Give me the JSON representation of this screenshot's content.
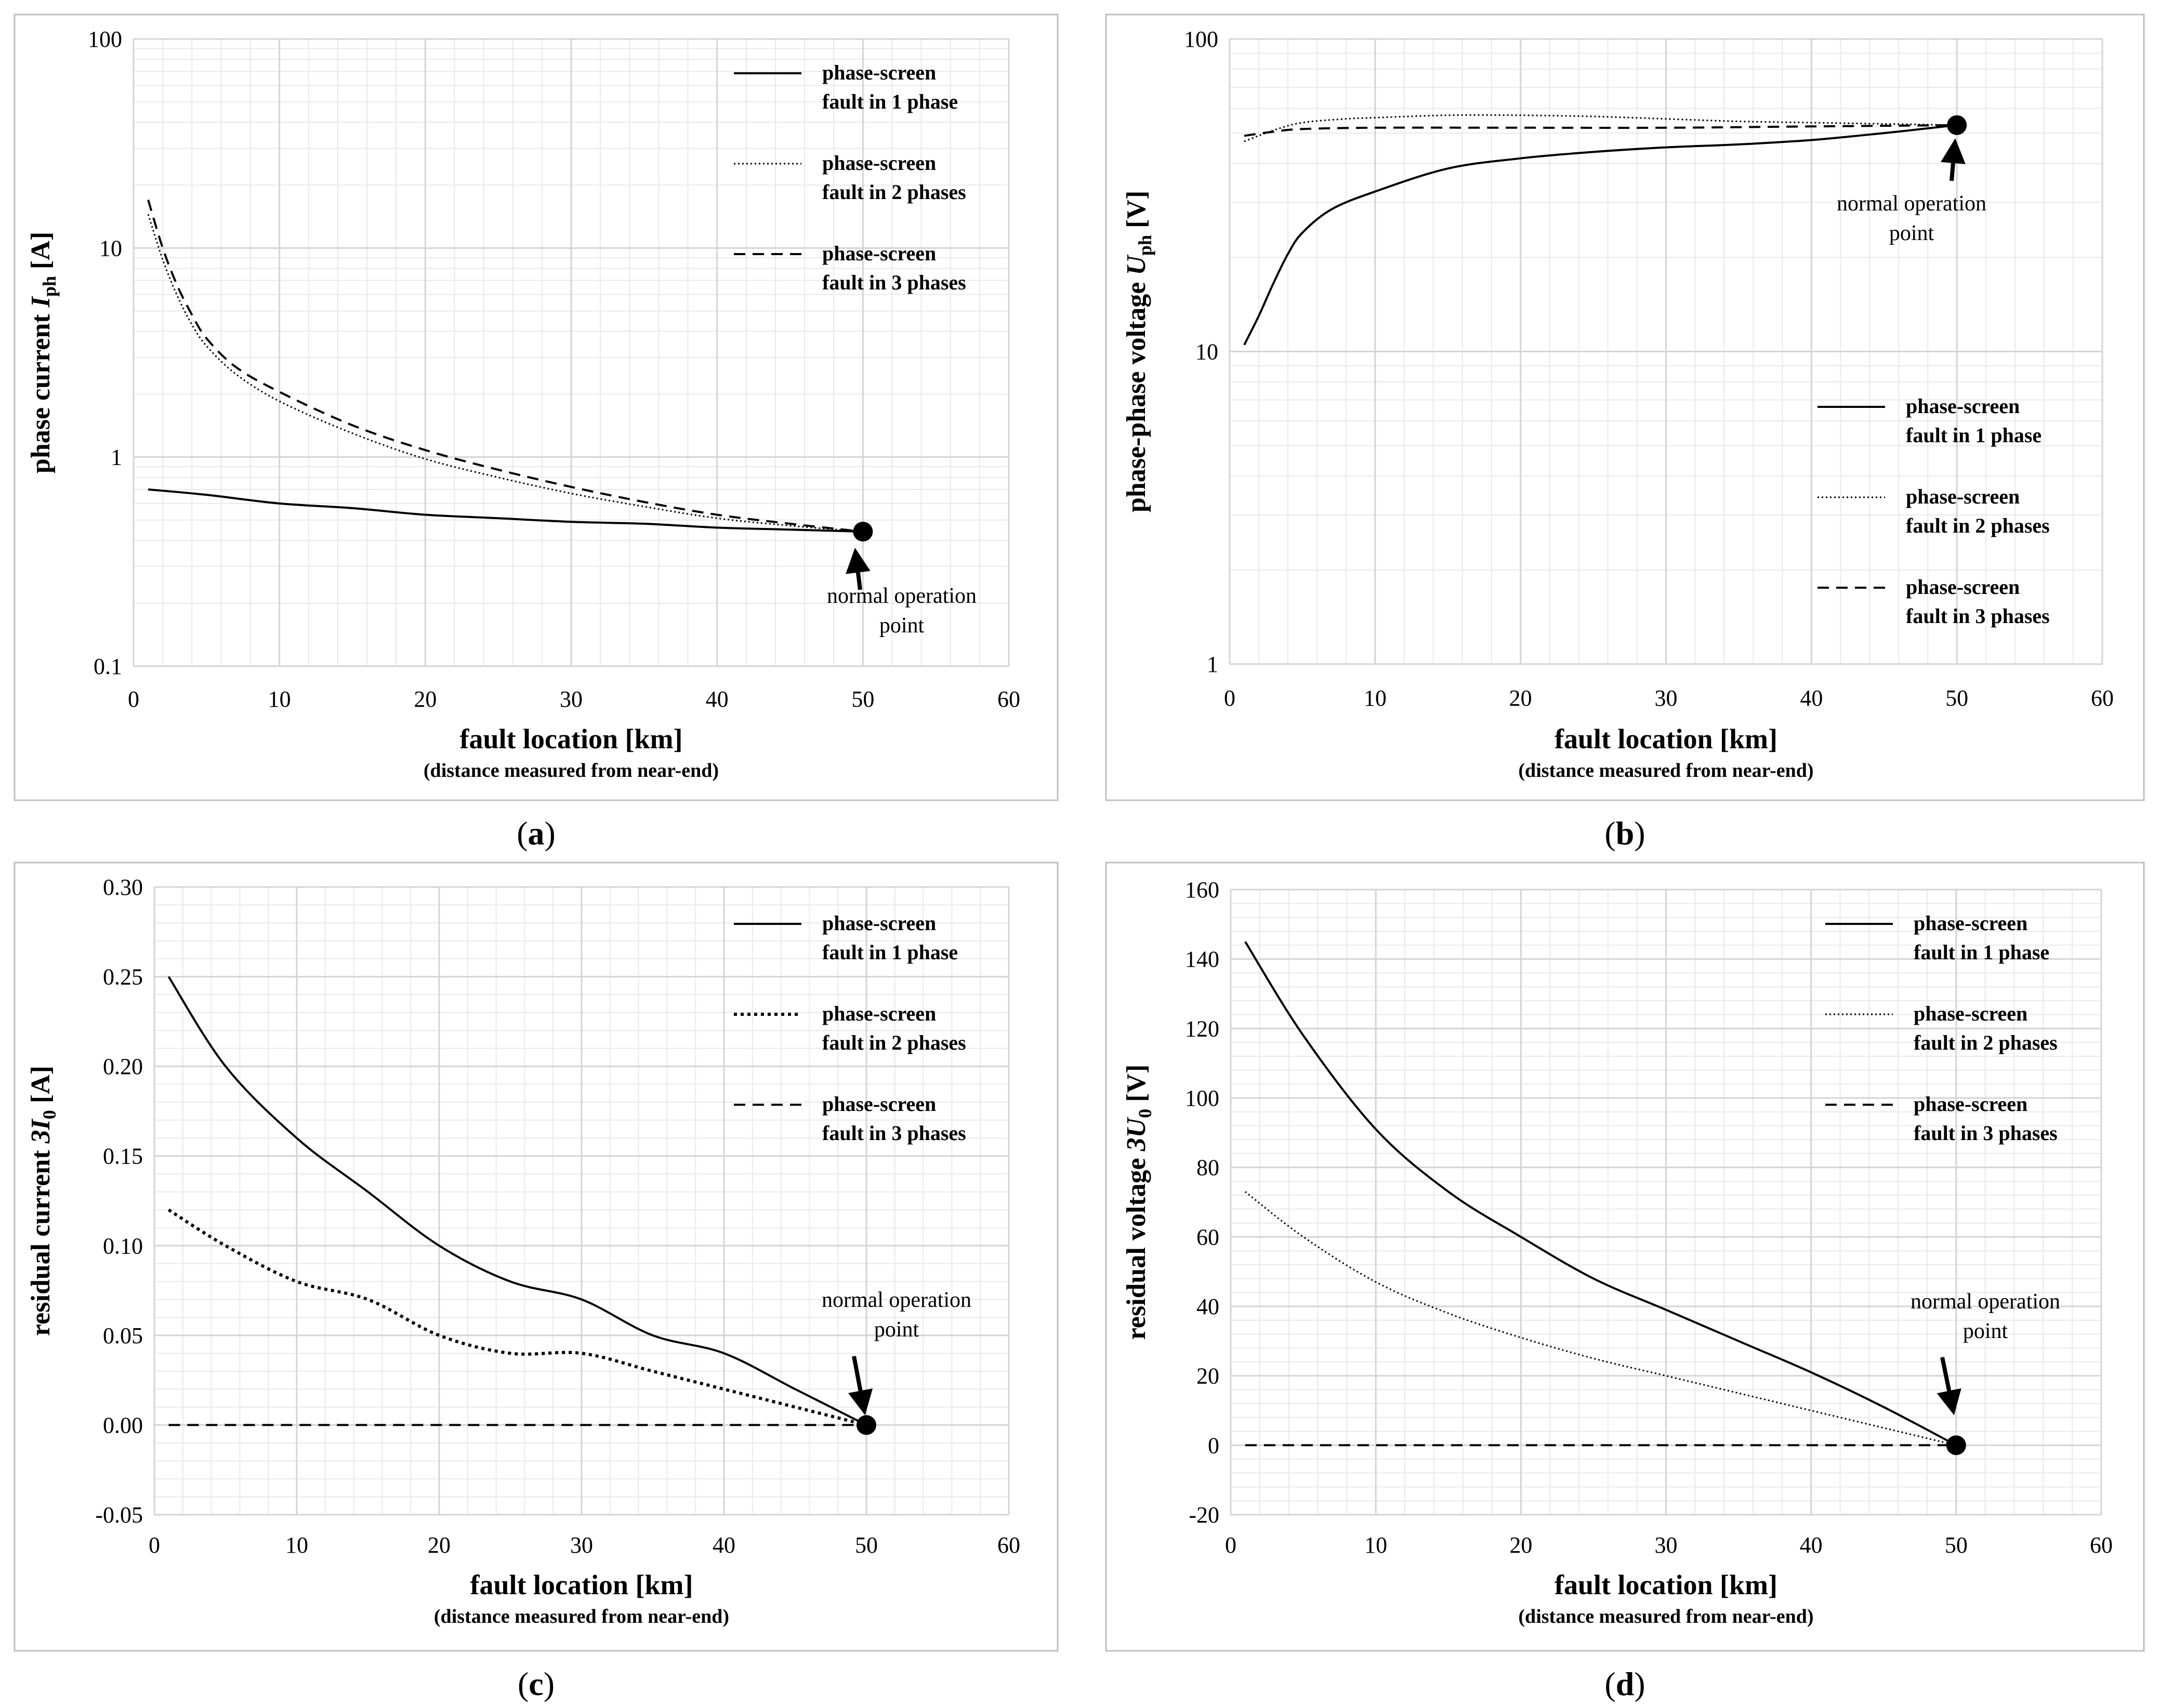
{
  "colors": {
    "background": "#ffffff",
    "frame": "#bfbfbf",
    "major_grid": "#d4d4d4",
    "minor_grid": "#e9e9e9",
    "ink": "#000000"
  },
  "legend_labels": [
    "phase-screen",
    "fault in 1 phase",
    "phase-screen",
    "fault in 2 phases",
    "phase-screen",
    "fault in 3 phases"
  ],
  "chart_data": [
    {
      "id": "a",
      "type": "line",
      "panel_label": "(a)",
      "ylabel_main": "phase current ",
      "ylabel_symbol": "I",
      "ylabel_sub": "ph",
      "ylabel_unit": " [A]",
      "xlabel": "fault location [km]",
      "xlabel_note": "(distance measured from near-end)",
      "yscale": "log",
      "xlim": [
        0,
        60
      ],
      "ylim": [
        0.1,
        100
      ],
      "xticks": [
        0,
        10,
        20,
        30,
        40,
        50,
        60
      ],
      "xtick_labels": [
        "0",
        "10",
        "20",
        "30",
        "40",
        "50",
        "60"
      ],
      "yticks": [
        0.1,
        1,
        10,
        100
      ],
      "ytick_labels": [
        "0.1",
        "1",
        "10",
        "100"
      ],
      "legend": {
        "position": "top-right",
        "entries": [
          {
            "line1": "phase-screen",
            "line2": "fault in 1 phase",
            "style": "solid"
          },
          {
            "line1": "phase-screen",
            "line2": "fault in 2 phases",
            "style": "dotted"
          },
          {
            "line1": "phase-screen",
            "line2": "fault in 3 phases",
            "style": "dashed"
          }
        ]
      },
      "series": [
        {
          "name": "phase-screen fault in 1 phase",
          "style": "solid",
          "x": [
            1,
            5,
            10,
            15,
            20,
            25,
            30,
            35,
            40,
            45,
            50
          ],
          "y": [
            0.7,
            0.66,
            0.6,
            0.57,
            0.53,
            0.51,
            0.49,
            0.48,
            0.46,
            0.45,
            0.44
          ]
        },
        {
          "name": "phase-screen fault in 2 phases",
          "style": "dotted",
          "x": [
            1,
            2,
            3,
            4,
            5,
            7,
            10,
            15,
            20,
            25,
            30,
            35,
            40,
            45,
            50
          ],
          "y": [
            14.5,
            8.8,
            5.9,
            4.3,
            3.4,
            2.5,
            1.85,
            1.3,
            0.98,
            0.8,
            0.67,
            0.58,
            0.51,
            0.47,
            0.44
          ]
        },
        {
          "name": "phase-screen fault in 3 phases",
          "style": "dashed",
          "x": [
            1,
            2,
            3,
            4,
            5,
            7,
            10,
            15,
            20,
            25,
            30,
            35,
            40,
            45,
            50
          ],
          "y": [
            17,
            10,
            6.6,
            4.8,
            3.7,
            2.7,
            2.05,
            1.42,
            1.08,
            0.87,
            0.72,
            0.61,
            0.53,
            0.48,
            0.44
          ]
        }
      ],
      "marker": {
        "x": 50,
        "y": 0.44
      },
      "annotation": {
        "lines": [
          "normal operation",
          "point"
        ]
      }
    },
    {
      "id": "b",
      "type": "line",
      "panel_label": "(b)",
      "ylabel_main": "phase-phase voltage ",
      "ylabel_symbol": "U",
      "ylabel_sub": "ph",
      "ylabel_unit": " [V]",
      "xlabel": "fault location [km]",
      "xlabel_note": "(distance measured from near-end)",
      "yscale": "log",
      "xlim": [
        0,
        60
      ],
      "ylim": [
        1,
        100
      ],
      "xticks": [
        0,
        10,
        20,
        30,
        40,
        50,
        60
      ],
      "xtick_labels": [
        "0",
        "10",
        "20",
        "30",
        "40",
        "50",
        "60"
      ],
      "yticks": [
        1,
        10,
        100
      ],
      "ytick_labels": [
        "1",
        "10",
        "100"
      ],
      "legend": {
        "position": "bottom-right",
        "entries": [
          {
            "line1": "phase-screen",
            "line2": "fault in 1 phase",
            "style": "solid"
          },
          {
            "line1": "phase-screen",
            "line2": "fault in 2 phases",
            "style": "dotted"
          },
          {
            "line1": "phase-screen",
            "line2": "fault in 3 phases",
            "style": "dashed"
          }
        ]
      },
      "series": [
        {
          "name": "phase-screen fault in 1 phase",
          "style": "solid",
          "x": [
            1,
            2,
            3,
            4,
            5,
            7,
            10,
            15,
            20,
            25,
            30,
            35,
            40,
            45,
            50
          ],
          "y": [
            10.5,
            13,
            16.5,
            20.5,
            24,
            28.5,
            32.5,
            38.5,
            41.5,
            43.5,
            45,
            46,
            47.5,
            50,
            53
          ]
        },
        {
          "name": "phase-screen fault in 2 phases",
          "style": "dotted",
          "x": [
            1,
            3,
            5,
            8,
            10,
            15,
            20,
            25,
            30,
            35,
            40,
            45,
            50
          ],
          "y": [
            47,
            51,
            54,
            55.5,
            56,
            57,
            57,
            56.5,
            55.5,
            54.5,
            54,
            53.5,
            53
          ]
        },
        {
          "name": "phase-screen fault in 3 phases",
          "style": "dashed",
          "x": [
            1,
            3,
            5,
            10,
            20,
            30,
            40,
            50
          ],
          "y": [
            49,
            50.5,
            51.5,
            52,
            52,
            52,
            52.5,
            53
          ]
        }
      ],
      "marker": {
        "x": 50,
        "y": 53
      },
      "annotation": {
        "lines": [
          "normal operation",
          "point"
        ]
      }
    },
    {
      "id": "c",
      "type": "line",
      "panel_label": "(c)",
      "ylabel_main": "residual current ",
      "ylabel_symbol": "3I",
      "ylabel_sub": "0",
      "ylabel_unit": " [A]",
      "xlabel": "fault location [km]",
      "xlabel_note": "(distance measured from near-end)",
      "yscale": "linear",
      "xlim": [
        0,
        60
      ],
      "ylim": [
        -0.05,
        0.3
      ],
      "xticks": [
        0,
        10,
        20,
        30,
        40,
        50,
        60
      ],
      "xtick_labels": [
        "0",
        "10",
        "20",
        "30",
        "40",
        "50",
        "60"
      ],
      "yticks": [
        -0.05,
        0,
        0.05,
        0.1,
        0.15,
        0.2,
        0.25,
        0.3
      ],
      "ytick_labels": [
        "-0.05",
        "0.00",
        "0.05",
        "0.10",
        "0.15",
        "0.20",
        "0.25",
        "0.30"
      ],
      "legend": {
        "position": "top-right",
        "entries": [
          {
            "line1": "phase-screen",
            "line2": "fault in 1 phase",
            "style": "solid"
          },
          {
            "line1": "phase-screen",
            "line2": "fault in 2 phases",
            "style": "dotted-heavy"
          },
          {
            "line1": "phase-screen",
            "line2": "fault in 3 phases",
            "style": "dashed"
          }
        ]
      },
      "series": [
        {
          "name": "phase-screen fault in 1 phase",
          "style": "solid",
          "x": [
            1,
            5,
            10,
            15,
            20,
            25,
            30,
            35,
            40,
            45,
            50
          ],
          "y": [
            0.25,
            0.2,
            0.16,
            0.13,
            0.1,
            0.08,
            0.07,
            0.05,
            0.04,
            0.02,
            0
          ]
        },
        {
          "name": "phase-screen fault in 2 phases",
          "style": "dotted-heavy",
          "x": [
            1,
            5,
            10,
            15,
            20,
            25,
            30,
            35,
            40,
            45,
            50
          ],
          "y": [
            0.12,
            0.1,
            0.08,
            0.07,
            0.05,
            0.04,
            0.04,
            0.03,
            0.02,
            0.01,
            0
          ]
        },
        {
          "name": "phase-screen fault in 3 phases",
          "style": "dashed",
          "x": [
            1,
            50
          ],
          "y": [
            0,
            0
          ]
        }
      ],
      "marker": {
        "x": 50,
        "y": 0
      },
      "annotation": {
        "lines": [
          "normal operation",
          "point"
        ]
      }
    },
    {
      "id": "d",
      "type": "line",
      "panel_label": "(d)",
      "ylabel_main": "residual voltage ",
      "ylabel_symbol": "3U",
      "ylabel_sub": "0",
      "ylabel_unit": " [V]",
      "xlabel": "fault location [km]",
      "xlabel_note": "(distance measured from near-end)",
      "yscale": "linear",
      "xlim": [
        0,
        60
      ],
      "ylim": [
        -20,
        160
      ],
      "xticks": [
        0,
        10,
        20,
        30,
        40,
        50,
        60
      ],
      "xtick_labels": [
        "0",
        "10",
        "20",
        "30",
        "40",
        "50",
        "60"
      ],
      "yticks": [
        -20,
        0,
        20,
        40,
        60,
        80,
        100,
        120,
        140,
        160
      ],
      "ytick_labels": [
        "-20",
        "0",
        "20",
        "40",
        "60",
        "80",
        "100",
        "120",
        "140",
        "160"
      ],
      "legend": {
        "position": "top-right",
        "entries": [
          {
            "line1": "phase-screen",
            "line2": "fault in 1 phase",
            "style": "solid"
          },
          {
            "line1": "phase-screen",
            "line2": "fault in 2 phases",
            "style": "dotted"
          },
          {
            "line1": "phase-screen",
            "line2": "fault in 3 phases",
            "style": "dashed"
          }
        ]
      },
      "series": [
        {
          "name": "phase-screen fault in 1 phase",
          "style": "solid",
          "x": [
            1,
            5,
            10,
            15,
            20,
            25,
            30,
            35,
            40,
            45,
            50
          ],
          "y": [
            145,
            118,
            91,
            73,
            60,
            48,
            39,
            30,
            21,
            11,
            0
          ]
        },
        {
          "name": "phase-screen fault in 2 phases",
          "style": "dotted",
          "x": [
            1,
            5,
            10,
            15,
            20,
            25,
            30,
            35,
            40,
            45,
            50
          ],
          "y": [
            73,
            60,
            47,
            38,
            31,
            25,
            20,
            15,
            10,
            5,
            0
          ]
        },
        {
          "name": "phase-screen fault in 3 phases",
          "style": "dashed",
          "x": [
            1,
            50
          ],
          "y": [
            0,
            0
          ]
        }
      ],
      "marker": {
        "x": 50,
        "y": 0
      },
      "annotation": {
        "lines": [
          "normal operation",
          "point"
        ]
      }
    }
  ]
}
